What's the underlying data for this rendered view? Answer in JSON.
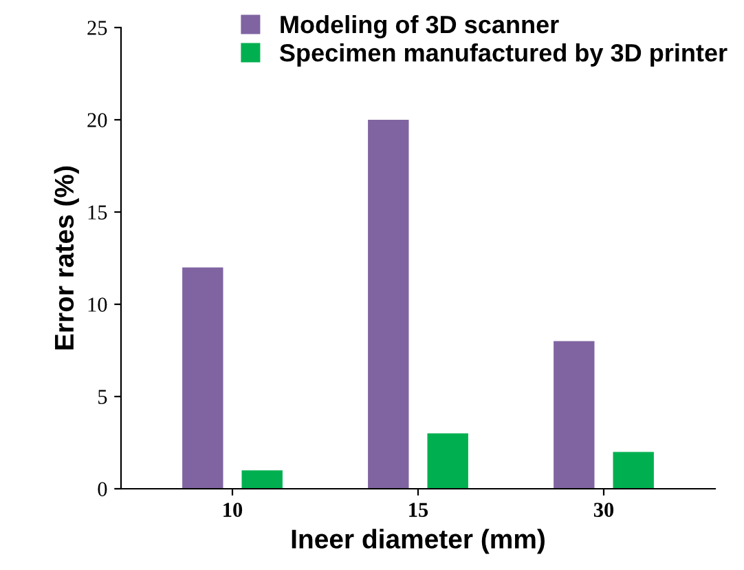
{
  "chart_data": {
    "type": "bar",
    "xlabel": "Ineer diameter (mm)",
    "ylabel": "Error rates (%)",
    "categories": [
      "10",
      "15",
      "30"
    ],
    "series": [
      {
        "name": "Modeling of 3D scanner",
        "color": "#8064a2",
        "values": [
          12,
          20,
          8
        ]
      },
      {
        "name": "Specimen manufactured by 3D printer",
        "color": "#00b050",
        "values": [
          1,
          3,
          2
        ]
      }
    ],
    "ylim": [
      0,
      25
    ],
    "yticks": [
      0,
      5,
      10,
      15,
      20,
      25
    ],
    "legend": "top right",
    "grid": false
  }
}
